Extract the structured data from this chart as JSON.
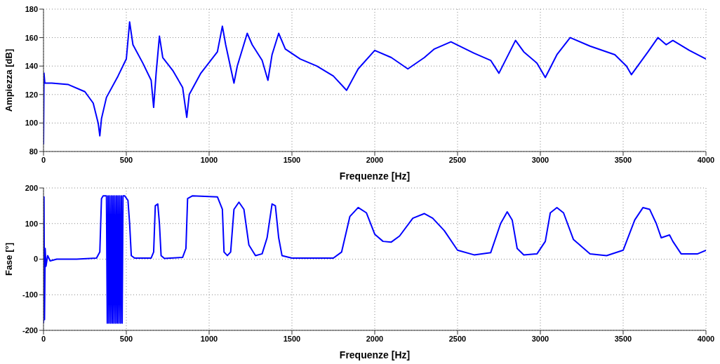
{
  "chart_data": [
    {
      "type": "line",
      "xlabel": "Frequenze [Hz]",
      "ylabel": "Ampiezza [dB]",
      "xlim": [
        0,
        4000
      ],
      "xticks": [
        0,
        500,
        1000,
        1500,
        2000,
        2500,
        3000,
        3500,
        4000
      ],
      "ylim": [
        80,
        180
      ],
      "yticks": [
        80,
        100,
        120,
        140,
        160,
        180
      ],
      "grid": true,
      "color": "#0000ff",
      "x": [
        0,
        3,
        8,
        50,
        150,
        250,
        300,
        330,
        340,
        350,
        380,
        450,
        500,
        520,
        540,
        600,
        650,
        665,
        680,
        700,
        720,
        780,
        840,
        865,
        880,
        950,
        1050,
        1080,
        1100,
        1150,
        1170,
        1230,
        1260,
        1320,
        1355,
        1380,
        1420,
        1460,
        1550,
        1650,
        1750,
        1830,
        1900,
        2000,
        2100,
        2200,
        2300,
        2360,
        2460,
        2600,
        2700,
        2750,
        2850,
        2900,
        2980,
        3030,
        3100,
        3180,
        3300,
        3450,
        3520,
        3550,
        3650,
        3710,
        3760,
        3800,
        3900,
        4000
      ],
      "values": [
        85,
        135,
        128,
        128,
        127,
        122,
        114,
        100,
        91,
        103,
        118,
        133,
        145,
        171,
        155,
        142,
        130,
        111,
        135,
        161,
        146,
        137,
        125,
        104,
        120,
        135,
        150,
        168,
        155,
        128,
        140,
        163,
        155,
        144,
        130,
        148,
        163,
        152,
        145,
        140,
        133,
        123,
        138,
        151,
        146,
        138,
        146,
        152,
        157,
        149,
        144,
        135,
        158,
        150,
        142,
        132,
        148,
        160,
        154,
        148,
        140,
        134,
        150,
        160,
        155,
        158,
        151,
        145
      ]
    },
    {
      "type": "line",
      "xlabel": "Frequenze [Hz]",
      "ylabel": "Fase [°]",
      "xlim": [
        0,
        4000
      ],
      "xticks": [
        0,
        500,
        1000,
        1500,
        2000,
        2500,
        3000,
        3500,
        4000
      ],
      "ylim": [
        -200,
        200
      ],
      "yticks": [
        -200,
        -100,
        0,
        100,
        200
      ],
      "grid": true,
      "color": "#0000ff",
      "x": [
        0,
        3,
        6,
        10,
        15,
        25,
        40,
        80,
        200,
        320,
        340,
        350,
        360,
        380,
        385,
        390,
        395,
        400,
        405,
        410,
        415,
        420,
        425,
        430,
        435,
        440,
        445,
        450,
        455,
        460,
        465,
        470,
        475,
        480,
        490,
        510,
        520,
        530,
        550,
        650,
        665,
        675,
        690,
        700,
        710,
        730,
        840,
        860,
        870,
        900,
        1050,
        1080,
        1090,
        1110,
        1130,
        1150,
        1180,
        1210,
        1240,
        1280,
        1320,
        1350,
        1380,
        1400,
        1420,
        1440,
        1500,
        1750,
        1800,
        1850,
        1900,
        1950,
        2000,
        2050,
        2100,
        2150,
        2230,
        2300,
        2350,
        2420,
        2500,
        2600,
        2700,
        2760,
        2800,
        2830,
        2860,
        2900,
        2980,
        3030,
        3060,
        3100,
        3140,
        3200,
        3300,
        3400,
        3500,
        3570,
        3620,
        3660,
        3700,
        3730,
        3780,
        3800,
        3850,
        3950,
        4000
      ],
      "values": [
        -180,
        175,
        -170,
        30,
        -20,
        10,
        -5,
        0,
        0,
        3,
        20,
        170,
        178,
        178,
        -180,
        178,
        -180,
        178,
        -180,
        178,
        -180,
        178,
        -180,
        178,
        -180,
        178,
        -180,
        178,
        -180,
        178,
        -180,
        178,
        -180,
        178,
        178,
        165,
        100,
        10,
        3,
        3,
        20,
        150,
        155,
        100,
        10,
        2,
        5,
        30,
        170,
        178,
        175,
        140,
        20,
        10,
        20,
        140,
        160,
        140,
        40,
        10,
        15,
        60,
        155,
        150,
        60,
        10,
        3,
        3,
        20,
        120,
        145,
        130,
        70,
        50,
        48,
        65,
        115,
        128,
        115,
        80,
        25,
        12,
        18,
        100,
        133,
        110,
        30,
        12,
        15,
        50,
        130,
        145,
        130,
        55,
        15,
        10,
        25,
        110,
        145,
        140,
        100,
        60,
        68,
        50,
        15,
        15,
        25
      ]
    }
  ]
}
